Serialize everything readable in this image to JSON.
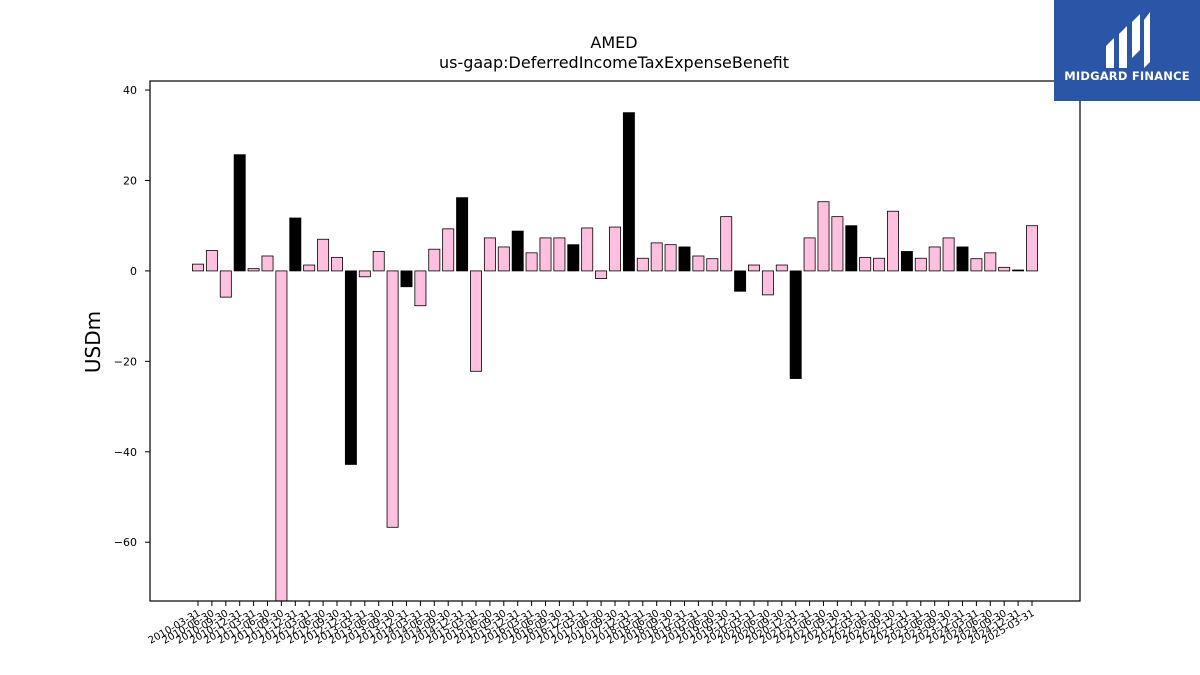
{
  "brand": {
    "name": "MIDGARD FINANCE",
    "logo_color": "#2b55a6"
  },
  "chart_data": {
    "type": "bar",
    "title": "AMED",
    "subtitle": "us-gaap:DeferredIncomeTaxExpenseBenefit",
    "ylabel": "USDm",
    "xlabel": "",
    "ylim": [
      -73,
      42
    ],
    "yticks": [
      -60,
      -40,
      -20,
      0,
      20,
      40
    ],
    "colors": {
      "quarterly": "#ffc0e0",
      "fourth_quarter": "#000000",
      "edge": "#000000"
    },
    "categories": [
      "2010-03-31",
      "2010-06-30",
      "2010-09-30",
      "2010-12-31",
      "2011-03-31",
      "2011-06-30",
      "2011-09-30",
      "2011-12-31",
      "2012-03-31",
      "2012-06-30",
      "2012-09-30",
      "2012-12-31",
      "2013-03-31",
      "2013-06-30",
      "2013-09-30",
      "2013-12-31",
      "2014-03-31",
      "2014-06-30",
      "2014-09-30",
      "2014-12-31",
      "2015-03-31",
      "2015-06-30",
      "2015-09-30",
      "2015-12-31",
      "2016-03-31",
      "2016-06-30",
      "2016-09-30",
      "2016-12-31",
      "2017-03-31",
      "2017-06-30",
      "2017-09-30",
      "2017-12-31",
      "2018-03-31",
      "2018-06-30",
      "2018-09-30",
      "2018-12-31",
      "2019-03-31",
      "2019-06-30",
      "2019-09-30",
      "2019-12-31",
      "2020-03-31",
      "2020-06-30",
      "2020-09-30",
      "2020-12-31",
      "2021-03-31",
      "2021-06-30",
      "2021-09-30",
      "2021-12-31",
      "2022-03-31",
      "2022-06-30",
      "2022-09-30",
      "2022-12-31",
      "2023-03-31",
      "2023-06-30",
      "2023-09-30",
      "2023-12-31",
      "2024-03-31",
      "2024-06-30",
      "2024-09-30",
      "2024-12-31",
      "2025-03-31"
    ],
    "tick_labels": [
      "2010-03-31",
      "2010-06-30",
      "2010-09-30",
      "2010-12-31",
      "2011-03-31",
      "2011-06-30",
      "2011-09-30",
      "2011-12-31",
      "2012-03-31",
      "2012-06-30",
      "2012-09-30",
      "2012-12-31",
      "2013-03-31",
      "2013-06-30",
      "2013-09-30",
      "2013-12-31",
      "2014-03-31",
      "2014-06-30",
      "2014-09-30",
      "2014-12-31",
      "2015-03-31",
      "2015-06-30",
      "2015-09-30",
      "2015-12-31",
      "2016-03-31",
      "2016-06-30",
      "2016-09-30",
      "2016-12-31",
      "2017-03-31",
      "2017-06-30",
      "2017-09-30",
      "2017-12-31",
      "2018-03-31",
      "2018-06-30",
      "2018-09-30",
      "2018-12-31",
      "2019-03-31",
      "2019-06-30",
      "2019-09-30",
      "2019-12-31",
      "2020-03-31",
      "2020-06-30",
      "2020-09-30",
      "2020-12-31",
      "2021-03-31",
      "2021-06-30",
      "2021-09-30",
      "2021-12-31",
      "2022-03-31",
      "2022-06-30",
      "2022-09-30",
      "2022-12-31",
      "2023-03-31",
      "2023-06-30",
      "2023-09-30",
      "2023-12-31",
      "2024-03-31",
      "2024-06-30",
      "2024-09-30",
      "2024-12-31",
      "2025-03-31"
    ],
    "values": [
      1.5,
      4.5,
      -5.8,
      25.7,
      0.5,
      3.3,
      -73,
      11.7,
      1.3,
      7.0,
      3.0,
      -42.8,
      -1.3,
      4.3,
      -56.7,
      -3.5,
      -7.7,
      4.8,
      9.3,
      16.2,
      -22.2,
      7.3,
      5.3,
      8.8,
      4.0,
      7.3,
      7.3,
      5.8,
      9.5,
      -1.7,
      9.7,
      35.0,
      2.8,
      6.2,
      5.8,
      5.3,
      3.3,
      2.7,
      12.0,
      -4.5,
      1.3,
      -5.3,
      1.3,
      -23.8,
      7.3,
      15.3,
      12.0,
      10.0,
      3.0,
      2.8,
      13.2,
      4.3,
      2.8,
      5.3,
      7.3,
      5.3,
      2.7,
      4.0,
      0.8,
      0.2,
      10.0
    ],
    "highlight": [
      false,
      false,
      false,
      true,
      false,
      false,
      false,
      true,
      false,
      false,
      false,
      true,
      false,
      false,
      false,
      true,
      false,
      false,
      false,
      true,
      false,
      false,
      false,
      true,
      false,
      false,
      false,
      true,
      false,
      false,
      false,
      true,
      false,
      false,
      false,
      true,
      false,
      false,
      false,
      true,
      false,
      false,
      false,
      true,
      false,
      false,
      false,
      true,
      false,
      false,
      false,
      true,
      false,
      false,
      false,
      true,
      false,
      false,
      false,
      true,
      false
    ],
    "grid": false,
    "legend": "none"
  }
}
